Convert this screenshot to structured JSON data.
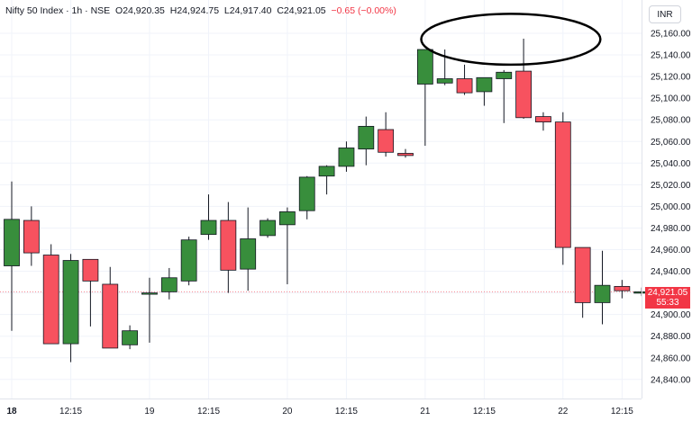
{
  "legend": {
    "symbol": "Nifty 50 Index",
    "timeframe": "1h",
    "exchange": "NSE",
    "open_label": "O",
    "open": "24,920.35",
    "high_label": "H",
    "high": "24,924.75",
    "low_label": "L",
    "low": "24,917.40",
    "close_label": "C",
    "close": "24,921.05",
    "change": "−0.65 (−0.00%)"
  },
  "currency_button": "INR",
  "last_price": {
    "value": "24,921.05",
    "countdown": "55:33"
  },
  "colors": {
    "up": "#388e3c",
    "down": "#f7525f",
    "wick": "#131722",
    "last_price_bg": "#f23645",
    "annotation": "#000000"
  },
  "chart_data": {
    "type": "candlestick",
    "title": "",
    "xlabel": "",
    "ylabel": "",
    "ylim": [
      24830,
      25175
    ],
    "y_ticks": [
      24840,
      24860,
      24880,
      24900,
      24920,
      24940,
      24960,
      24980,
      25000,
      25020,
      25040,
      25060,
      25080,
      25100,
      25120,
      25140,
      25160
    ],
    "y_tick_labels": [
      "24,840.00",
      "24,860.00",
      "24,880.00",
      "24,900.00",
      "24,920.00",
      "24,940.00",
      "24,960.00",
      "24,980.00",
      "25,000.00",
      "25,020.00",
      "25,040.00",
      "25,060.00",
      "25,080.00",
      "25,100.00",
      "25,120.00",
      "25,140.00",
      "25,160.00"
    ],
    "x_ticks": [
      {
        "index": 0,
        "label": "18",
        "bold": true
      },
      {
        "index": 3,
        "label": "12:15",
        "bold": false
      },
      {
        "index": 7,
        "label": "19",
        "bold": false
      },
      {
        "index": 10,
        "label": "12:15",
        "bold": false
      },
      {
        "index": 14,
        "label": "20",
        "bold": false
      },
      {
        "index": 17,
        "label": "12:15",
        "bold": false
      },
      {
        "index": 21,
        "label": "21",
        "bold": false
      },
      {
        "index": 24,
        "label": "12:15",
        "bold": false
      },
      {
        "index": 28,
        "label": "22",
        "bold": false
      },
      {
        "index": 31,
        "label": "12:15",
        "bold": false
      }
    ],
    "candles": [
      {
        "o": 24945,
        "h": 25023,
        "l": 24885,
        "c": 24988
      },
      {
        "o": 24987,
        "h": 25000,
        "l": 24945,
        "c": 24957
      },
      {
        "o": 24955,
        "h": 24965,
        "l": 24873,
        "c": 24873
      },
      {
        "o": 24873,
        "h": 24956,
        "l": 24856,
        "c": 24950
      },
      {
        "o": 24951,
        "h": 24950,
        "l": 24889,
        "c": 24931
      },
      {
        "o": 24928,
        "h": 24944,
        "l": 24869,
        "c": 24869
      },
      {
        "o": 24872,
        "h": 24890,
        "l": 24868,
        "c": 24885
      },
      {
        "o": 24919,
        "h": 24934,
        "l": 24874,
        "c": 24920
      },
      {
        "o": 24921,
        "h": 24943,
        "l": 24914,
        "c": 24934
      },
      {
        "o": 24931,
        "h": 24972,
        "l": 24927,
        "c": 24969
      },
      {
        "o": 24974,
        "h": 25011,
        "l": 24969,
        "c": 24987
      },
      {
        "o": 24987,
        "h": 25004,
        "l": 24920,
        "c": 24941
      },
      {
        "o": 24942,
        "h": 24999,
        "l": 24922,
        "c": 24970
      },
      {
        "o": 24973,
        "h": 24989,
        "l": 24971,
        "c": 24987
      },
      {
        "o": 24983,
        "h": 24999,
        "l": 24928,
        "c": 24995
      },
      {
        "o": 24996,
        "h": 25028,
        "l": 24988,
        "c": 25027
      },
      {
        "o": 25028,
        "h": 25038,
        "l": 25011,
        "c": 25037
      },
      {
        "o": 25037,
        "h": 25060,
        "l": 25032,
        "c": 25054
      },
      {
        "o": 25053,
        "h": 25083,
        "l": 25038,
        "c": 25074
      },
      {
        "o": 25071,
        "h": 25087,
        "l": 25046,
        "c": 25050
      },
      {
        "o": 25049,
        "h": 25053,
        "l": 25045,
        "c": 25047
      },
      {
        "o": 25113,
        "h": 25145,
        "l": 25056,
        "c": 25145
      },
      {
        "o": 25114,
        "h": 25145,
        "l": 25112,
        "c": 25118
      },
      {
        "o": 25118,
        "h": 25131,
        "l": 25103,
        "c": 25105
      },
      {
        "o": 25106,
        "h": 25117,
        "l": 25093,
        "c": 25119
      },
      {
        "o": 25118,
        "h": 25126,
        "l": 25077,
        "c": 25124
      },
      {
        "o": 25125,
        "h": 25155,
        "l": 25081,
        "c": 25082
      },
      {
        "o": 25083,
        "h": 25087,
        "l": 25070,
        "c": 25078
      },
      {
        "o": 25078,
        "h": 25087,
        "l": 24946,
        "c": 24962
      },
      {
        "o": 24962,
        "h": 24962,
        "l": 24897,
        "c": 24911
      },
      {
        "o": 24911,
        "h": 24959,
        "l": 24891,
        "c": 24927
      },
      {
        "o": 24926,
        "h": 24932,
        "l": 24915,
        "c": 24922
      },
      {
        "o": 24921,
        "h": 24925,
        "l": 24917,
        "c": 24921
      }
    ],
    "annotation": {
      "shape": "ellipse",
      "from_index": 20.8,
      "to_index": 29.9,
      "y_low": 25131,
      "y_high": 25178
    },
    "grid": true,
    "legend_position": "top-left"
  }
}
